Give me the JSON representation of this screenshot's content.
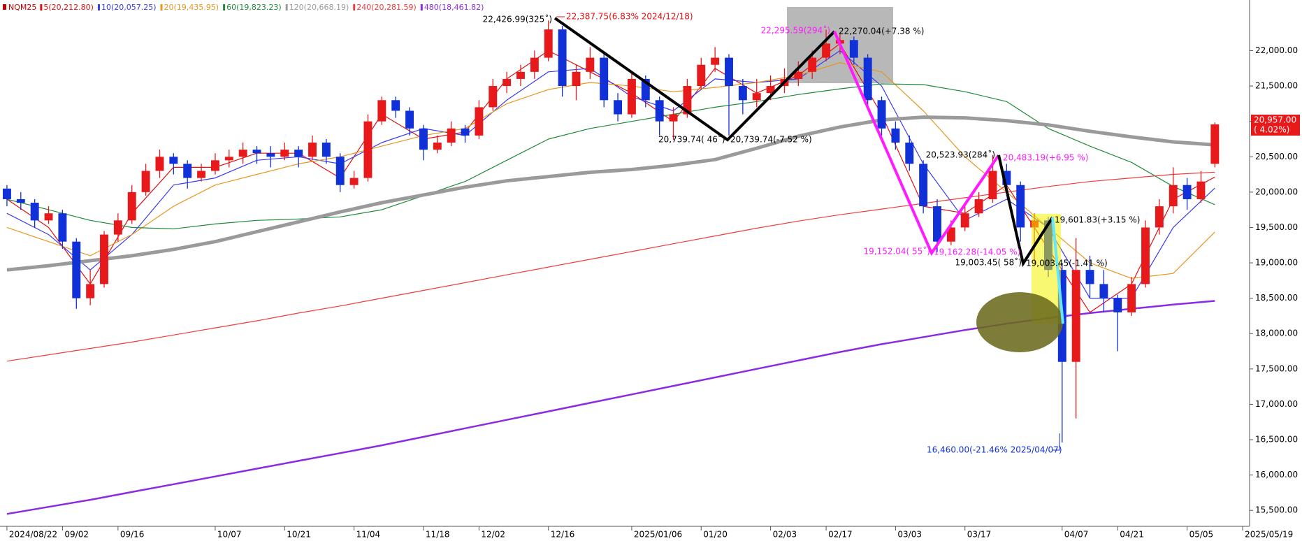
{
  "chart_data": {
    "type": "candlestick",
    "legend_title": "NQM25",
    "legend_color": "#c00000",
    "up_color": "#e8191b",
    "down_color": "#1030d8",
    "categories": [
      "2024/08/22",
      null,
      null,
      null,
      "09/02",
      null,
      null,
      null,
      "09/16",
      null,
      null,
      null,
      null,
      null,
      null,
      "10/07",
      null,
      null,
      null,
      null,
      "10/21",
      null,
      null,
      null,
      null,
      "11/04",
      null,
      null,
      null,
      null,
      "11/18",
      null,
      null,
      null,
      "12/02",
      null,
      null,
      null,
      null,
      "12/16",
      null,
      null,
      null,
      null,
      null,
      "2025/01/06",
      null,
      null,
      null,
      null,
      "01/20",
      null,
      null,
      null,
      null,
      "02/03",
      null,
      null,
      null,
      "02/17",
      null,
      null,
      null,
      null,
      "03/03",
      null,
      null,
      null,
      null,
      "03/17",
      null,
      null,
      null,
      null,
      null,
      null,
      "04/07",
      null,
      null,
      null,
      "04/21",
      null,
      null,
      null,
      null,
      "05/05",
      null,
      null,
      null,
      "2025/05/19"
    ],
    "open": [
      20050,
      19900,
      19850,
      19600,
      19700,
      19300,
      18500,
      18700,
      19400,
      19600,
      20000,
      20300,
      20500,
      20400,
      20200,
      20300,
      20450,
      20500,
      20600,
      20550,
      20500,
      20600,
      20500,
      20700,
      20500,
      20100,
      20200,
      21000,
      21300,
      21150,
      20900,
      20600,
      20700,
      20900,
      20800,
      21200,
      21500,
      21600,
      21700,
      21900,
      22300,
      21500,
      21700,
      21900,
      21300,
      21100,
      21600,
      21300,
      21000,
      21100,
      21500,
      21800,
      21900,
      21500,
      21300,
      21400,
      21500,
      21600,
      21700,
      21900,
      22100,
      22150,
      21900,
      21300,
      20900,
      20700,
      20400,
      19800,
      19300,
      19500,
      19700,
      19900,
      20300,
      20100,
      19500,
      19600,
      18900,
      17600,
      18900,
      18700,
      18500,
      18300,
      18700,
      19500,
      19800,
      20100,
      19900,
      20400,
      null,
      null
    ],
    "high": [
      20100,
      20000,
      19900,
      19800,
      19750,
      19350,
      18900,
      19450,
      19700,
      20100,
      20400,
      20600,
      20550,
      20450,
      20400,
      20550,
      20600,
      20700,
      20650,
      20650,
      20700,
      20650,
      20800,
      20750,
      20550,
      20300,
      21100,
      21350,
      21350,
      21200,
      20950,
      20800,
      21000,
      20950,
      21300,
      21600,
      21700,
      21800,
      22000,
      22427,
      22350,
      21800,
      22050,
      21950,
      21400,
      21700,
      21650,
      21350,
      21200,
      21600,
      21900,
      22050,
      21950,
      21600,
      21600,
      21650,
      21750,
      21850,
      22000,
      22296,
      22250,
      22200,
      21950,
      21350,
      21000,
      20800,
      20450,
      19900,
      19600,
      19800,
      20000,
      20524,
      20400,
      20150,
      19700,
      19650,
      19000,
      19350,
      19100,
      18900,
      18550,
      18800,
      19600,
      19900,
      20350,
      20200,
      20300,
      20985,
      null,
      null
    ],
    "low": [
      19800,
      19750,
      19500,
      19550,
      19200,
      18350,
      18400,
      18650,
      19300,
      19550,
      19950,
      20200,
      20250,
      20050,
      20150,
      20250,
      20350,
      20400,
      20400,
      20350,
      20450,
      20350,
      20450,
      20400,
      20000,
      20050,
      20150,
      20950,
      21050,
      20800,
      20450,
      20550,
      20650,
      20700,
      20750,
      21150,
      21400,
      21500,
      21600,
      21850,
      21350,
      21300,
      21600,
      21200,
      21000,
      21050,
      21200,
      20800,
      20740,
      21050,
      21450,
      21700,
      20800,
      21100,
      21200,
      21300,
      21400,
      21500,
      21600,
      21850,
      21950,
      21800,
      21200,
      20800,
      20600,
      20300,
      19700,
      19152,
      19250,
      19450,
      19650,
      19850,
      20000,
      19300,
      19003,
      18800,
      16460,
      16800,
      18500,
      18300,
      17750,
      18250,
      18650,
      19400,
      19700,
      19750,
      19850,
      20350,
      null,
      null
    ],
    "close": [
      19900,
      19850,
      19600,
      19700,
      19300,
      18500,
      18700,
      19400,
      19600,
      20000,
      20300,
      20500,
      20400,
      20200,
      20300,
      20450,
      20500,
      20600,
      20550,
      20500,
      20600,
      20500,
      20700,
      20500,
      20100,
      20200,
      21000,
      21300,
      21150,
      20900,
      20600,
      20700,
      20900,
      20800,
      21200,
      21500,
      21600,
      21700,
      21900,
      22300,
      21500,
      21700,
      21900,
      21300,
      21100,
      21600,
      21300,
      21000,
      21100,
      21500,
      21800,
      21900,
      21500,
      21300,
      21400,
      21500,
      21600,
      21700,
      21900,
      22100,
      22150,
      21900,
      21300,
      20900,
      20700,
      20400,
      19800,
      19300,
      19500,
      19700,
      19900,
      20300,
      20100,
      19500,
      19600,
      18900,
      17600,
      18900,
      18700,
      18500,
      18300,
      18700,
      19500,
      19800,
      20100,
      19900,
      20150,
      20957,
      null,
      null
    ],
    "moving_averages": [
      {
        "name": "5(20,212.80)",
        "color": "#e01010",
        "width": 1.2,
        "values": [
          19900,
          19500,
          18700,
          19700,
          20350,
          20350,
          20550,
          20550,
          20200,
          21100,
          20750,
          20850,
          21600,
          22000,
          21700,
          21400,
          21000,
          21750,
          21400,
          21650,
          22100,
          21100,
          19800,
          19700,
          20100,
          19200,
          18300,
          18700,
          19900,
          20213
        ]
      },
      {
        "name": "10(20,057.25)",
        "color": "#3a3af0",
        "width": 1.2,
        "values": [
          19700,
          19400,
          18900,
          19400,
          20100,
          20200,
          20450,
          20500,
          20400,
          20700,
          20900,
          20800,
          21300,
          21700,
          21750,
          21350,
          21150,
          21600,
          21550,
          21600,
          22000,
          21500,
          20400,
          19600,
          19900,
          19500,
          18500,
          18500,
          19500,
          20057
        ]
      },
      {
        "name": "20(19,435.95)",
        "color": "#e8961e",
        "width": 1.2,
        "values": [
          19500,
          19300,
          19100,
          19400,
          19800,
          20100,
          20250,
          20400,
          20500,
          20650,
          20800,
          20900,
          21250,
          21450,
          21550,
          21500,
          21420,
          21480,
          21550,
          21650,
          21830,
          21700,
          21150,
          20500,
          20000,
          19500,
          19000,
          18780,
          18850,
          19436
        ]
      },
      {
        "name": "60(19,823.23)",
        "color": "#1f8a3a",
        "width": 1.2,
        "values": [
          19900,
          19750,
          19600,
          19500,
          19480,
          19550,
          19600,
          19620,
          19650,
          19750,
          19950,
          20150,
          20450,
          20750,
          20900,
          21000,
          21100,
          21200,
          21280,
          21380,
          21460,
          21530,
          21520,
          21420,
          21280,
          20900,
          20650,
          20420,
          20080,
          19823
        ]
      },
      {
        "name": "120(20,668.19)",
        "color": "#9a9a9a",
        "width": 5,
        "values": [
          18900,
          18960,
          19030,
          19100,
          19190,
          19300,
          19440,
          19580,
          19720,
          19850,
          19960,
          20070,
          20160,
          20220,
          20280,
          20320,
          20380,
          20460,
          20620,
          20790,
          20920,
          21020,
          21060,
          21050,
          21010,
          20950,
          20860,
          20780,
          20710,
          20668
        ]
      },
      {
        "name": "240(20,281.59)",
        "color": "#f03c3c",
        "width": 1.2,
        "values": [
          17610,
          17700,
          17790,
          17880,
          17980,
          18080,
          18180,
          18290,
          18390,
          18500,
          18610,
          18720,
          18830,
          18940,
          19050,
          19160,
          19270,
          19380,
          19490,
          19590,
          19680,
          19760,
          19840,
          19920,
          20000,
          20080,
          20150,
          20200,
          20250,
          20282
        ]
      },
      {
        "name": "480(18,461.82)",
        "color": "#8a2be2",
        "width": 2.5,
        "values": [
          15450,
          15550,
          15650,
          15760,
          15870,
          15980,
          16090,
          16200,
          16310,
          16420,
          16540,
          16660,
          16780,
          16900,
          17020,
          17140,
          17260,
          17380,
          17500,
          17620,
          17740,
          17850,
          17950,
          18050,
          18140,
          18220,
          18290,
          18350,
          18410,
          18462
        ]
      }
    ],
    "ylim": [
      15275,
      22716
    ],
    "yticks": [
      {
        "value": 15500,
        "label": "15,500.00"
      },
      {
        "value": 16000,
        "label": "16,000.00"
      },
      {
        "value": 16500,
        "label": "16,500.00"
      },
      {
        "value": 17000,
        "label": "17,000.00"
      },
      {
        "value": 17500,
        "label": "17,500.00"
      },
      {
        "value": 18000,
        "label": "18,000.00"
      },
      {
        "value": 18500,
        "label": "18,500.00"
      },
      {
        "value": 19000,
        "label": "19,000.00"
      },
      {
        "value": 19500,
        "label": "19,500.00"
      },
      {
        "value": 20000,
        "label": "20,000.00"
      },
      {
        "value": 20500,
        "label": "20,500.00"
      },
      {
        "value": 21000,
        "label": "21,000.00"
      },
      {
        "value": 21500,
        "label": "21,500.00"
      },
      {
        "value": 22000,
        "label": "22,000.00"
      }
    ],
    "annotations": [
      "22,426.99(325˚)",
      "22,387.75(6.83% 2024/12/18)",
      "20,739.74( 46˚)",
      "20,739.74(-7.52 %)",
      "22,295.59(294˚)",
      "22,270.04(+7.38 %)",
      "20,523.93(284˚)",
      "20,483.19(+6.95 %)",
      "19,152.04( 55˚)",
      "19,162.28(-14.05 %)",
      "19,003.45( 58˚)",
      "19,003.45(-1.41 %)",
      "19,601.83(+3.15 %)",
      "16,460.00(-21.46% 2025/04/07)"
    ],
    "last_price": {
      "value": 20957,
      "label": "20,957.00",
      "change": "( 4.02%)"
    }
  }
}
